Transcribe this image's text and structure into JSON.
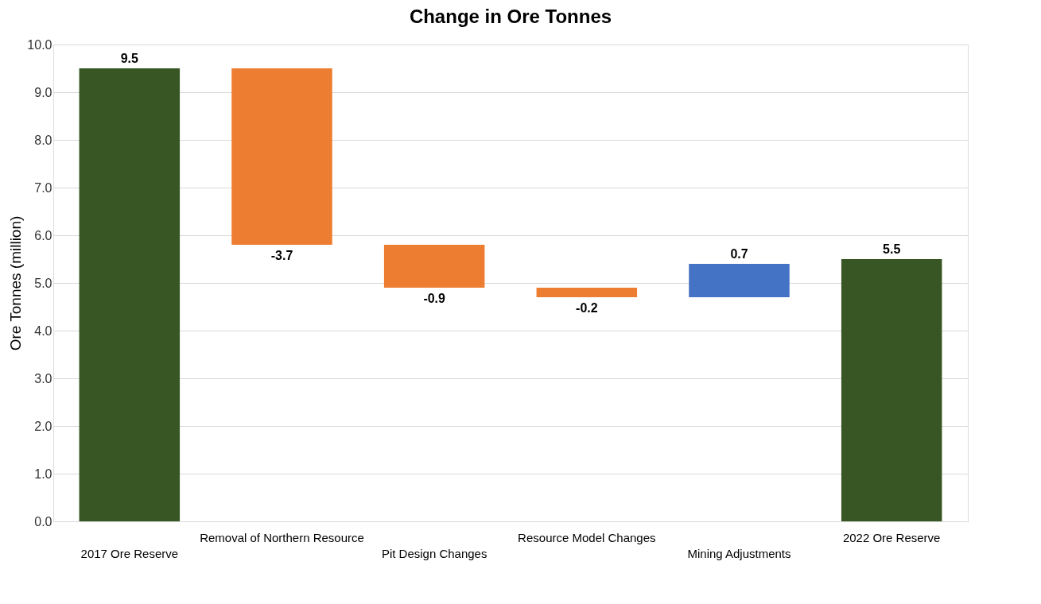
{
  "chart_data": {
    "type": "bar",
    "title": "Change in Ore Tonnes",
    "ylabel": "Ore Tonnes (million)",
    "categories": [
      "2017 Ore Reserve",
      "Removal of Northern Resource",
      "Pit Design Changes",
      "Resource Model Changes",
      "Mining Adjustments",
      "2022 Ore Reserve"
    ],
    "values": [
      9.5,
      -3.7,
      -0.9,
      -0.2,
      0.7,
      5.5
    ],
    "base": [
      0,
      9.5,
      5.8,
      4.9,
      4.7,
      0
    ],
    "colors": [
      "#375623",
      "#ed7d31",
      "#ed7d31",
      "#ed7d31",
      "#4472c4",
      "#375623"
    ],
    "ylim": [
      0,
      10
    ],
    "yticks": [
      {
        "value": 0,
        "label": "0.0"
      },
      {
        "value": 1,
        "label": "1.0"
      },
      {
        "value": 2,
        "label": "2.0"
      },
      {
        "value": 3,
        "label": "3.0"
      },
      {
        "value": 4,
        "label": "4.0"
      },
      {
        "value": 5,
        "label": "5.0"
      },
      {
        "value": 6,
        "label": "6.0"
      },
      {
        "value": 7,
        "label": "7.0"
      },
      {
        "value": 8,
        "label": "8.0"
      },
      {
        "value": 9,
        "label": "9.0"
      },
      {
        "value": 10,
        "label": "10.0"
      }
    ],
    "grid": "y",
    "data_labels": true
  }
}
